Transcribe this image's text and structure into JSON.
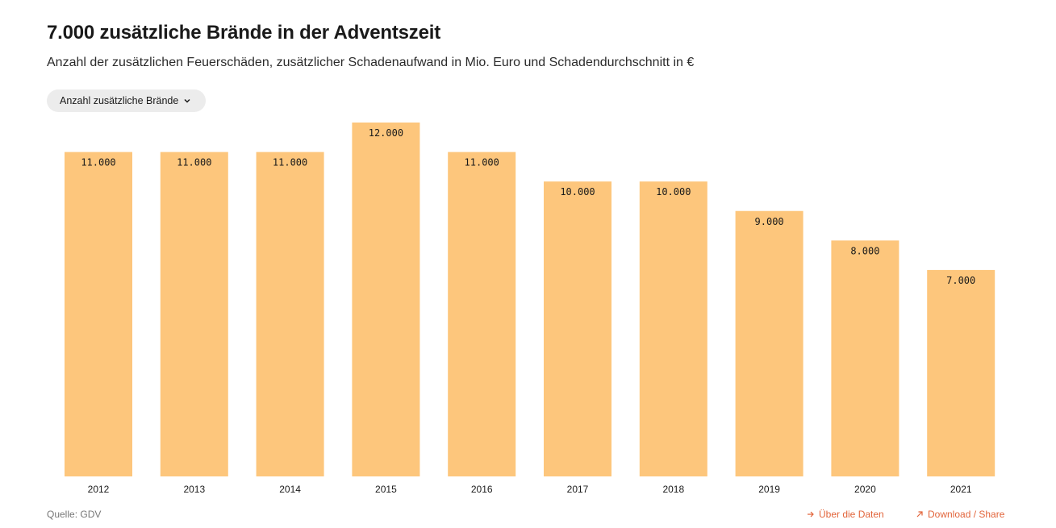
{
  "header": {
    "title": "7.000 zusätzliche Brände in der Adventszeit",
    "subtitle": "Anzahl der zusätzlichen Feuerschäden, zusätzlicher Schadenaufwand in Mio. Euro und Schadendurchschnitt in €"
  },
  "dropdown": {
    "selected": "Anzahl zusätzliche Brände",
    "icon": "chevron-down-icon"
  },
  "footer": {
    "source": "Quelle: GDV",
    "about_label": "Über die Daten",
    "share_label": "Download / Share",
    "link_color": "#e2643a"
  },
  "chart_data": {
    "type": "bar",
    "categories": [
      "2012",
      "2013",
      "2014",
      "2015",
      "2016",
      "2017",
      "2018",
      "2019",
      "2020",
      "2021"
    ],
    "values": [
      11000,
      11000,
      11000,
      12000,
      11000,
      10000,
      10000,
      9000,
      8000,
      7000
    ],
    "value_labels": [
      "11.000",
      "11.000",
      "11.000",
      "12.000",
      "11.000",
      "10.000",
      "10.000",
      "9.000",
      "8.000",
      "7.000"
    ],
    "title": "7.000 zusätzliche Brände in der Adventszeit",
    "xlabel": "",
    "ylabel": "",
    "ylim": [
      0,
      12000
    ],
    "grid": false,
    "bar_color": "#fdc67c"
  }
}
